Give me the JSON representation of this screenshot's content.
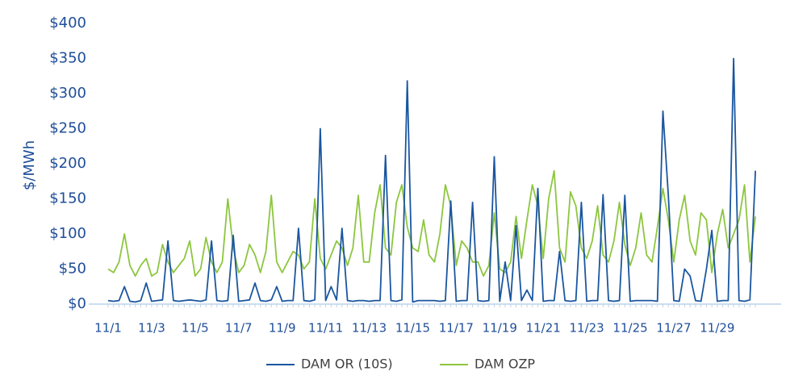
{
  "chart_data": {
    "type": "line",
    "y_label": "$/MWh",
    "categories": [
      "11/1",
      null,
      null,
      null,
      null,
      null,
      null,
      null,
      "11/3",
      null,
      null,
      null,
      null,
      null,
      null,
      null,
      "11/5",
      null,
      null,
      null,
      null,
      null,
      null,
      null,
      "11/7",
      null,
      null,
      null,
      null,
      null,
      null,
      null,
      "11/9",
      null,
      null,
      null,
      null,
      null,
      null,
      null,
      "11/11",
      null,
      null,
      null,
      null,
      null,
      null,
      null,
      "11/13",
      null,
      null,
      null,
      null,
      null,
      null,
      null,
      "11/15",
      null,
      null,
      null,
      null,
      null,
      null,
      null,
      "11/17",
      null,
      null,
      null,
      null,
      null,
      null,
      null,
      "11/19",
      null,
      null,
      null,
      null,
      null,
      null,
      null,
      "11/21",
      null,
      null,
      null,
      null,
      null,
      null,
      null,
      "11/23",
      null,
      null,
      null,
      null,
      null,
      null,
      null,
      "11/25",
      null,
      null,
      null,
      null,
      null,
      null,
      null,
      "11/27",
      null,
      null,
      null,
      null,
      null,
      null,
      null,
      "11/29",
      null,
      null,
      null,
      null,
      null,
      null,
      null
    ],
    "series": [
      {
        "name": "DAM OR (10S)",
        "color": "#1a56a0",
        "values": [
          5,
          4,
          5,
          25,
          4,
          3,
          5,
          30,
          4,
          5,
          6,
          90,
          5,
          4,
          5,
          6,
          5,
          4,
          6,
          90,
          5,
          4,
          5,
          98,
          4,
          5,
          6,
          30,
          5,
          4,
          6,
          25,
          4,
          5,
          5,
          108,
          5,
          4,
          6,
          250,
          5,
          25,
          6,
          108,
          5,
          4,
          5,
          5,
          4,
          5,
          5,
          212,
          5,
          4,
          6,
          318,
          3,
          5,
          5,
          5,
          5,
          4,
          5,
          147,
          4,
          5,
          5,
          145,
          5,
          4,
          5,
          210,
          4,
          60,
          5,
          112,
          5,
          20,
          5,
          165,
          4,
          5,
          5,
          75,
          5,
          4,
          5,
          145,
          4,
          5,
          5,
          156,
          5,
          4,
          5,
          155,
          4,
          5,
          5,
          5,
          5,
          4,
          275,
          155,
          5,
          4,
          50,
          40,
          5,
          4,
          50,
          105,
          4,
          5,
          5,
          350,
          5,
          4,
          6,
          190
        ]
      },
      {
        "name": "DAM OZP",
        "color": "#8dc63f",
        "values": [
          50,
          45,
          60,
          100,
          55,
          40,
          55,
          65,
          40,
          45,
          85,
          60,
          45,
          55,
          65,
          90,
          40,
          50,
          95,
          60,
          45,
          60,
          150,
          80,
          45,
          55,
          85,
          70,
          45,
          75,
          155,
          60,
          45,
          60,
          75,
          70,
          50,
          60,
          150,
          65,
          50,
          70,
          90,
          80,
          55,
          80,
          155,
          60,
          60,
          130,
          170,
          80,
          70,
          145,
          170,
          110,
          80,
          75,
          120,
          70,
          60,
          100,
          170,
          140,
          55,
          90,
          80,
          60,
          60,
          40,
          55,
          130,
          50,
          45,
          60,
          125,
          65,
          120,
          170,
          140,
          65,
          150,
          190,
          80,
          60,
          160,
          140,
          80,
          65,
          90,
          140,
          70,
          60,
          90,
          145,
          85,
          55,
          80,
          130,
          70,
          60,
          110,
          165,
          120,
          60,
          120,
          155,
          90,
          70,
          130,
          120,
          45,
          100,
          135,
          80,
          100,
          120,
          170,
          60,
          125
        ]
      }
    ],
    "ylim": [
      0,
      400
    ],
    "yticks": [
      {
        "value": 0,
        "label": "$0"
      },
      {
        "value": 50,
        "label": "$50"
      },
      {
        "value": 100,
        "label": "$100"
      },
      {
        "value": 150,
        "label": "$150"
      },
      {
        "value": 200,
        "label": "$200"
      },
      {
        "value": 250,
        "label": "$250"
      },
      {
        "value": 300,
        "label": "$300"
      },
      {
        "value": 350,
        "label": "$350"
      },
      {
        "value": 400,
        "label": "$400"
      }
    ],
    "grid": false,
    "legend": "bottom"
  }
}
